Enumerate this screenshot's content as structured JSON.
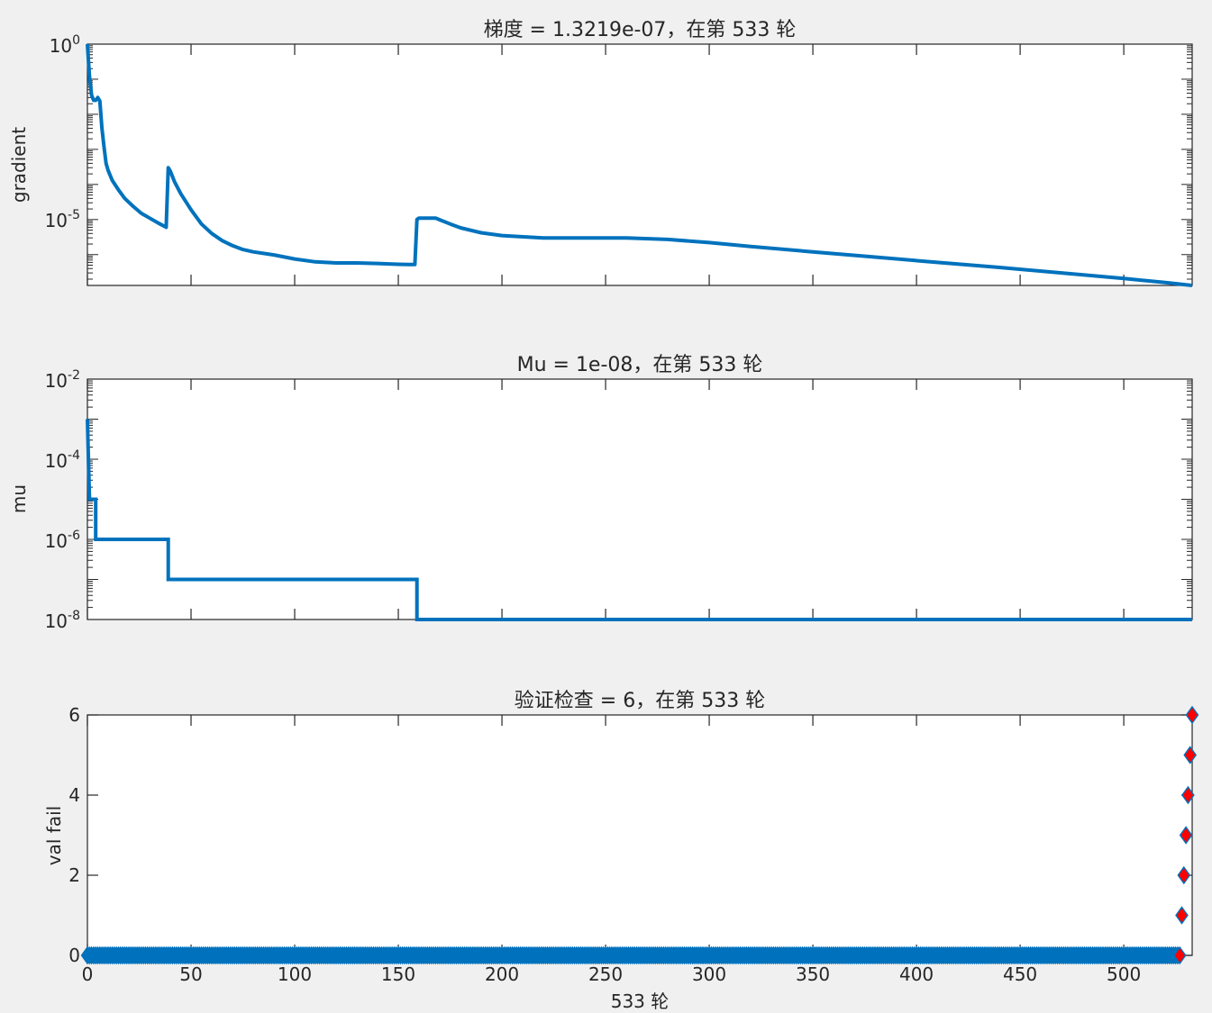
{
  "chart_data": [
    {
      "type": "line",
      "title": "梯度 = 1.3219e-07，在第 533 轮",
      "ylabel": "gradient",
      "yscale": "log",
      "xlim": [
        0,
        533
      ],
      "ylim": [
        1.321e-07,
        1
      ],
      "yticks": [
        {
          "base": "10",
          "exp": "0"
        },
        {
          "base": "10",
          "exp": "-5"
        }
      ],
      "color": "#0072BD",
      "series": [
        {
          "x": [
            0,
            1,
            2,
            3,
            4,
            5,
            6,
            7,
            8,
            9,
            10,
            12,
            15,
            18,
            22,
            26,
            30,
            35,
            38,
            39,
            40,
            42,
            45,
            50,
            55,
            60,
            65,
            70,
            75,
            80,
            90,
            100,
            110,
            120,
            130,
            140,
            150,
            155,
            158,
            159,
            160,
            162,
            165,
            168,
            170,
            175,
            180,
            190,
            200,
            220,
            240,
            260,
            280,
            300,
            320,
            350,
            380,
            410,
            440,
            470,
            500,
            520,
            533
          ],
          "y": [
            1,
            0.12,
            0.035,
            0.025,
            0.025,
            0.03,
            0.024,
            0.004,
            0.0012,
            0.0004,
            0.00025,
            0.00013,
            7e-05,
            4e-05,
            2.4e-05,
            1.5e-05,
            1.1e-05,
            7.5e-06,
            6e-06,
            0.0003,
            0.00024,
            0.00012,
            5.5e-05,
            1.9e-05,
            7.5e-06,
            4e-06,
            2.5e-06,
            1.8e-06,
            1.4e-06,
            1.2e-06,
            9.8e-07,
            7.5e-07,
            6.2e-07,
            5.8e-07,
            5.8e-07,
            5.6e-07,
            5.3e-07,
            5.2e-07,
            5.2e-07,
            1e-05,
            1.1e-05,
            1.1e-05,
            1.1e-05,
            1.1e-05,
            9.8e-06,
            7.5e-06,
            5.8e-06,
            4.2e-06,
            3.5e-06,
            3e-06,
            3e-06,
            3e-06,
            2.7e-06,
            2.2e-06,
            1.7e-06,
            1.2e-06,
            8.5e-07,
            6e-07,
            4.3e-07,
            3e-07,
            2.1e-07,
            1.6e-07,
            1.321e-07
          ]
        }
      ]
    },
    {
      "type": "line",
      "title": "Mu = 1e-08，在第 533 轮",
      "ylabel": "mu",
      "yscale": "log",
      "xlim": [
        0,
        533
      ],
      "ylim": [
        1e-08,
        0.01
      ],
      "yticks": [
        {
          "base": "10",
          "exp": "-2"
        },
        {
          "base": "10",
          "exp": "-4"
        },
        {
          "base": "10",
          "exp": "-6"
        },
        {
          "base": "10",
          "exp": "-8"
        }
      ],
      "color": "#0072BD",
      "series": [
        {
          "x": [
            0,
            1,
            2,
            2,
            4,
            4,
            5,
            38,
            39,
            39,
            158,
            159,
            159,
            533
          ],
          "y": [
            0.001,
            1e-05,
            1e-05,
            1e-05,
            1e-05,
            1e-06,
            1e-06,
            1e-06,
            1e-06,
            1e-07,
            1e-07,
            1e-07,
            1e-08,
            1e-08
          ]
        }
      ]
    },
    {
      "type": "scatter",
      "title": "验证检查 = 6，在第 533 轮",
      "xlabel": "533 轮",
      "ylabel": "val fail",
      "xlim": [
        0,
        533
      ],
      "ylim": [
        0,
        6
      ],
      "xticks": [
        "0",
        "50",
        "100",
        "150",
        "200",
        "250",
        "300",
        "350",
        "400",
        "450",
        "500"
      ],
      "yticks": [
        "0",
        "2",
        "4",
        "6"
      ],
      "colors": {
        "normal": "#0072BD",
        "fail": "#FF0000"
      },
      "series": [
        {
          "zero_x_range": [
            0,
            527
          ],
          "y": 0
        },
        {
          "x": [
            527,
            528,
            529,
            530,
            531,
            532,
            533
          ],
          "y": [
            0,
            1,
            2,
            3,
            4,
            5,
            6
          ]
        }
      ]
    }
  ]
}
